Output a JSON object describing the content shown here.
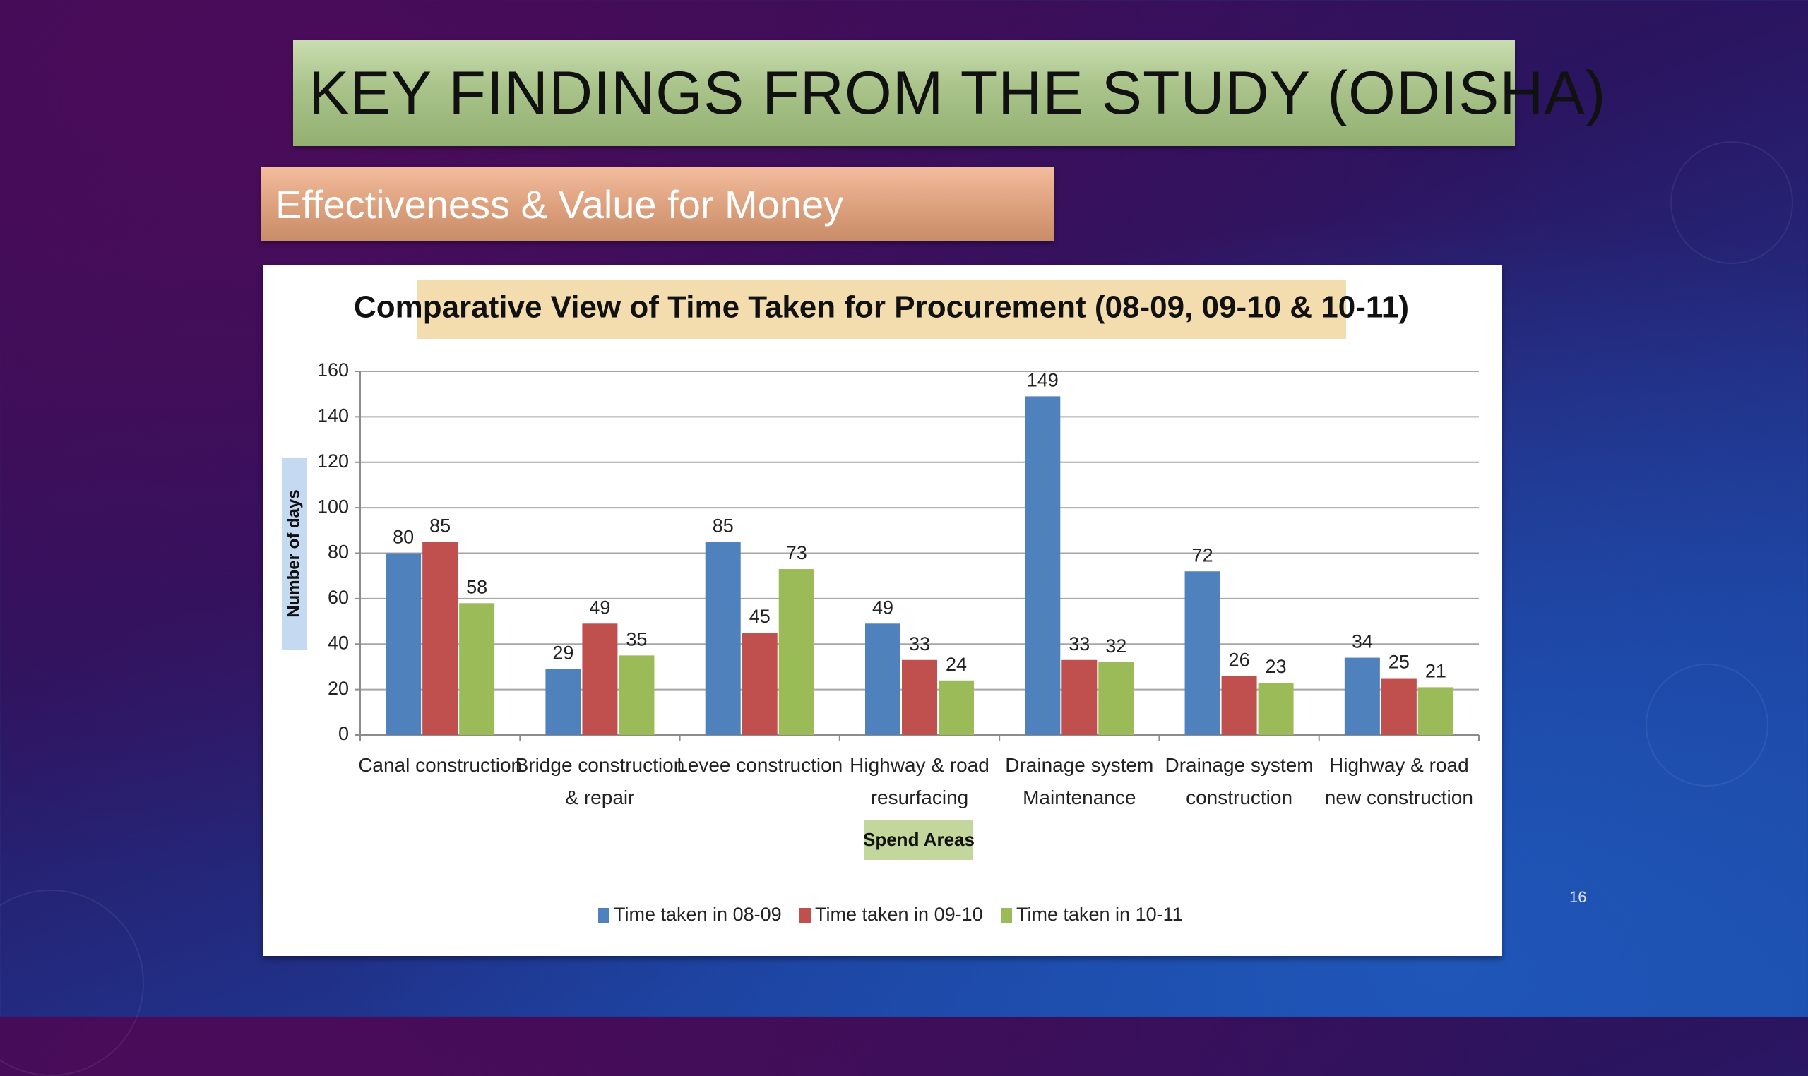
{
  "slide": {
    "title": "KEY FINDINGS FROM THE STUDY (ODISHA)",
    "subtitle": "Effectiveness & Value for Money",
    "page_number": "16"
  },
  "chart_data": {
    "type": "bar",
    "title": "Comparative View of Time Taken for Procurement (08-09, 09-10 & 10-11)",
    "xlabel": "Spend Areas",
    "ylabel": "Number of days",
    "ylim": [
      0,
      160
    ],
    "yticks": [
      0,
      20,
      40,
      60,
      80,
      100,
      120,
      140,
      160
    ],
    "grid": true,
    "legend_position": "bottom",
    "categories": [
      [
        "Canal construction"
      ],
      [
        "Bridge construction",
        "&  repair"
      ],
      [
        "Levee construction"
      ],
      [
        "Highway & road",
        "resurfacing"
      ],
      [
        "Drainage system",
        "Maintenance"
      ],
      [
        "Drainage system",
        "construction"
      ],
      [
        "Highway & road",
        "new construction"
      ]
    ],
    "series": [
      {
        "name": "Time taken in 08-09",
        "color": "#4f81bd",
        "values": [
          80,
          29,
          85,
          49,
          149,
          72,
          34
        ]
      },
      {
        "name": "Time taken in 09-10",
        "color": "#c0504d",
        "values": [
          85,
          49,
          45,
          33,
          33,
          26,
          25
        ]
      },
      {
        "name": "Time taken in 10-11",
        "color": "#9bbb59",
        "values": [
          58,
          35,
          73,
          24,
          32,
          23,
          21
        ]
      }
    ]
  }
}
